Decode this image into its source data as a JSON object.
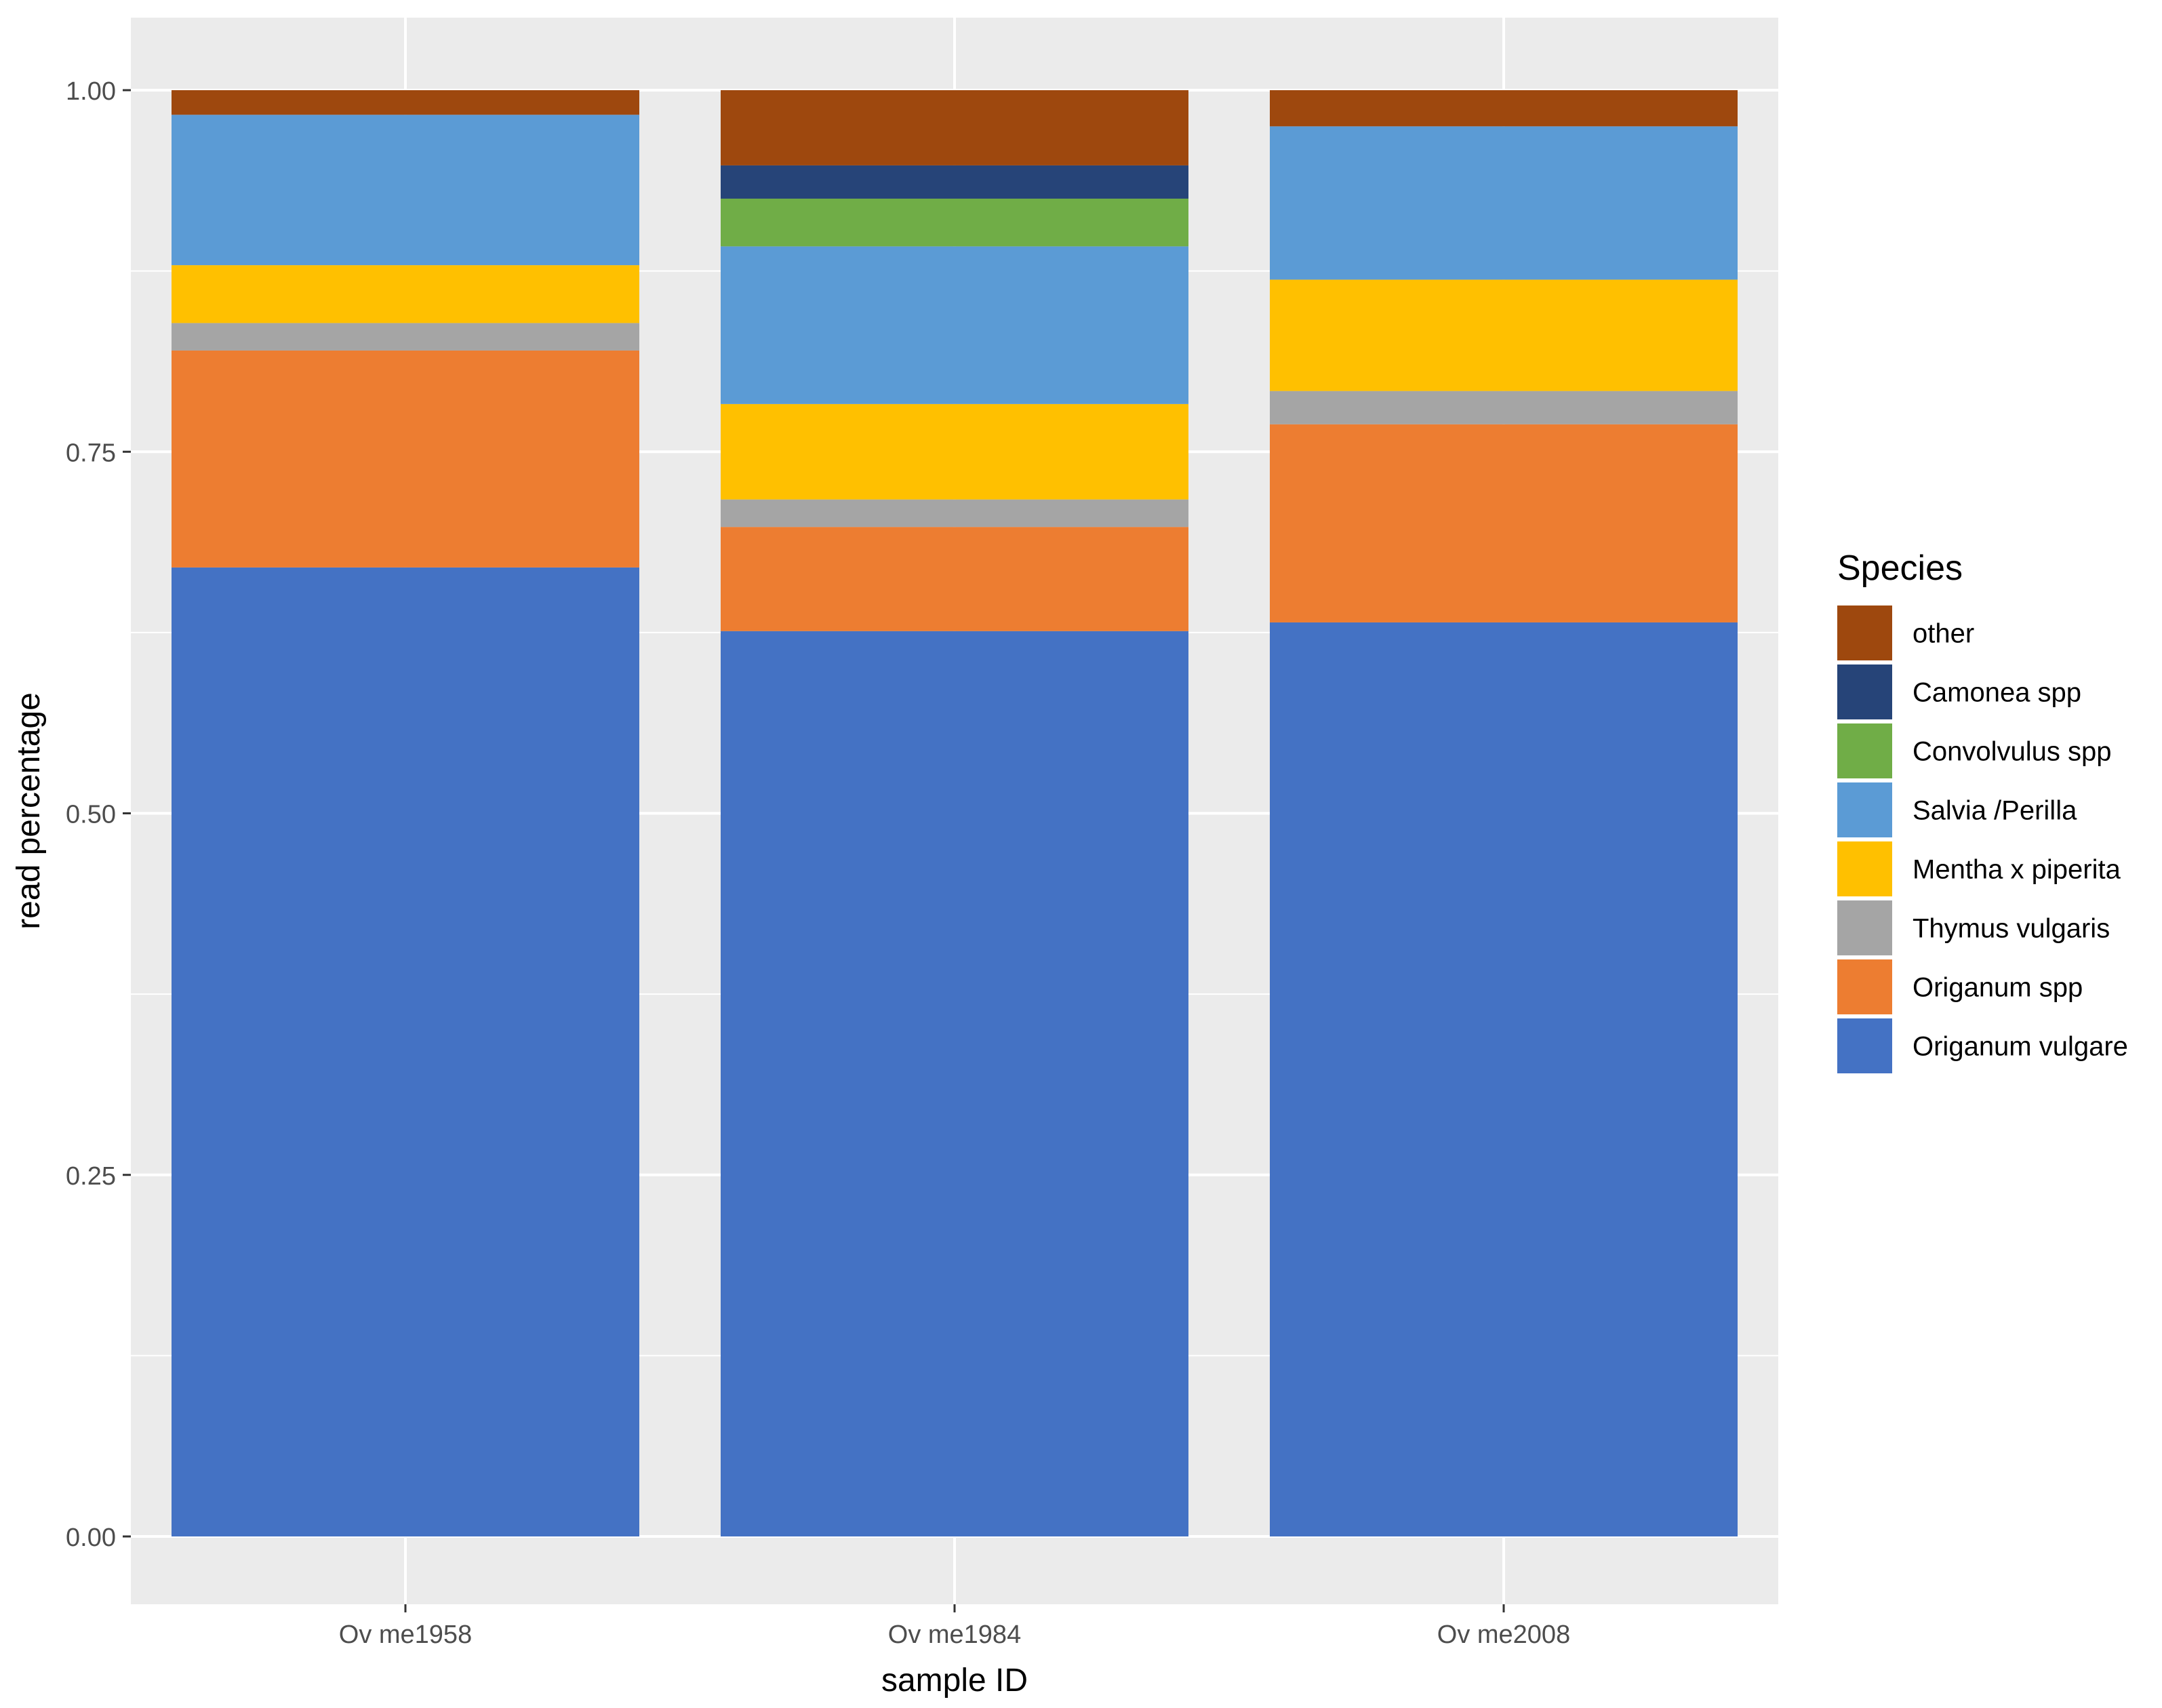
{
  "chart_data": {
    "type": "bar",
    "stacked": true,
    "categories": [
      "Ov me1958",
      "Ov me1984",
      "Ov me2008"
    ],
    "xlabel": "sample ID",
    "ylabel": "read percentage",
    "ylim": [
      -0.05,
      1.05
    ],
    "yticks": [
      "0.00",
      "0.25",
      "0.50",
      "0.75",
      "1.00"
    ],
    "grid": true,
    "legend": {
      "title": "Species",
      "position": "right"
    },
    "series": [
      {
        "name": "Origanum vulgare",
        "color": "#4472C4",
        "values": [
          0.67,
          0.626,
          0.632
        ]
      },
      {
        "name": "Origanum spp",
        "color": "#ED7D31",
        "values": [
          0.15,
          0.072,
          0.137
        ]
      },
      {
        "name": "Thymus vulgaris",
        "color": "#A5A5A5",
        "values": [
          0.019,
          0.019,
          0.023
        ]
      },
      {
        "name": "Mentha x piperita",
        "color": "#FFC000",
        "values": [
          0.04,
          0.066,
          0.077
        ]
      },
      {
        "name": "Salvia /Perilla",
        "color": "#5B9BD5",
        "values": [
          0.104,
          0.109,
          0.106
        ]
      },
      {
        "name": "Convolvulus spp",
        "color": "#70AD47",
        "values": [
          0.0,
          0.033,
          0.0
        ]
      },
      {
        "name": "Camonea spp",
        "color": "#264478",
        "values": [
          0.0,
          0.023,
          0.0
        ]
      },
      {
        "name": "other",
        "color": "#9E480E",
        "values": [
          0.017,
          0.052,
          0.025
        ]
      }
    ]
  }
}
